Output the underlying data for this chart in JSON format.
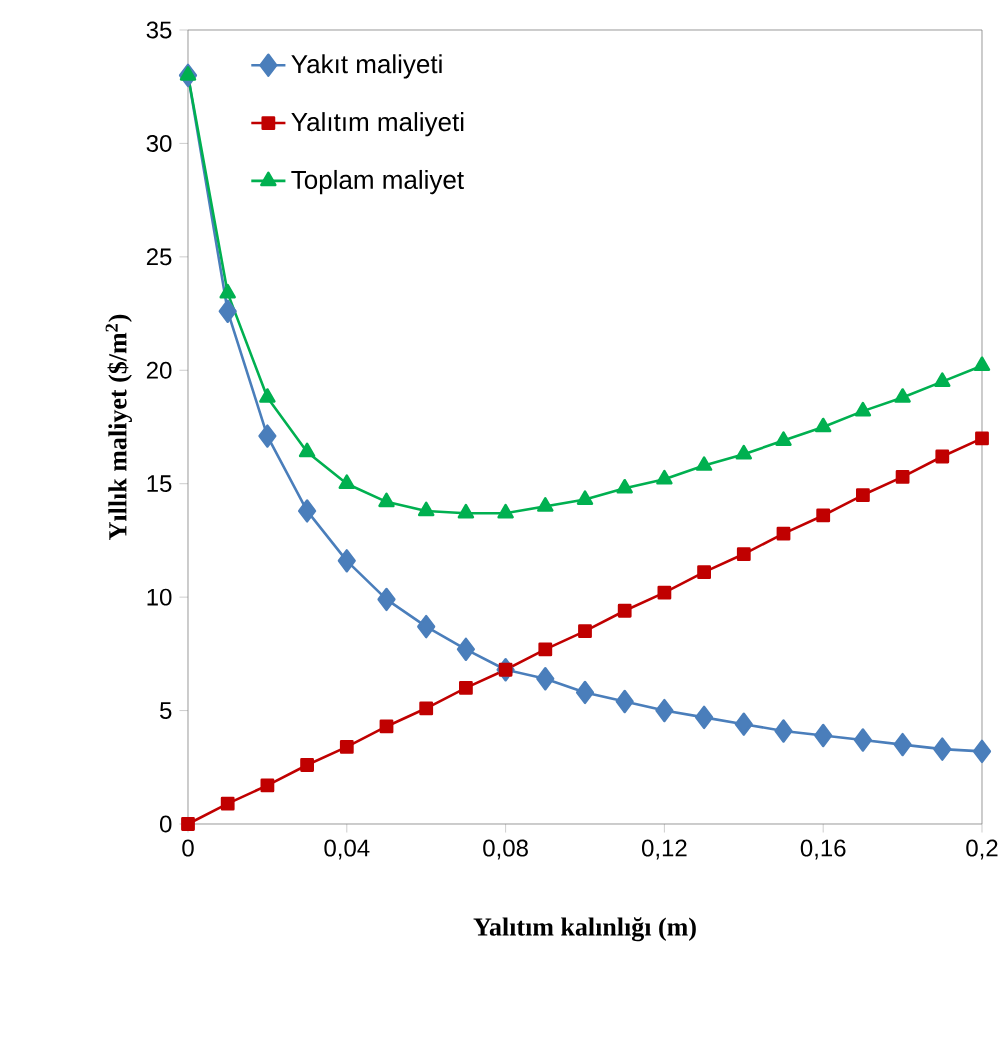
{
  "chart_data": {
    "type": "line",
    "xlabel": "Yalıtım kalınlığı (m)",
    "ylabel": "Yıllık maliyet ($/m$^{2}$)",
    "x": [
      0,
      0.01,
      0.02,
      0.03,
      0.04,
      0.05,
      0.06,
      0.07,
      0.08,
      0.09,
      0.1,
      0.11,
      0.12,
      0.13,
      0.14,
      0.15,
      0.16,
      0.17,
      0.18,
      0.19,
      0.2
    ],
    "series": [
      {
        "name": "Yakıt maliyeti",
        "color": "#4a7ebb",
        "marker": "diamond",
        "values": [
          33,
          22.6,
          17.1,
          13.8,
          11.6,
          9.9,
          8.7,
          7.7,
          6.8,
          6.4,
          5.8,
          5.4,
          5.0,
          4.7,
          4.4,
          4.1,
          3.9,
          3.7,
          3.5,
          3.3,
          3.2
        ]
      },
      {
        "name": "Yalıtım maliyeti",
        "color": "#c00000",
        "marker": "square",
        "values": [
          0,
          0.9,
          1.7,
          2.6,
          3.4,
          4.3,
          5.1,
          6.0,
          6.8,
          7.7,
          8.5,
          9.4,
          10.2,
          11.1,
          11.9,
          12.8,
          13.6,
          14.5,
          15.3,
          16.2,
          17
        ]
      },
      {
        "name": "Toplam maliyet",
        "color": "#00b050",
        "marker": "triangle",
        "values": [
          33,
          23.4,
          18.8,
          16.4,
          15.0,
          14.2,
          13.8,
          13.7,
          13.7,
          14.0,
          14.3,
          14.8,
          15.2,
          15.8,
          16.3,
          16.9,
          17.5,
          18.2,
          18.8,
          19.5,
          20.2
        ]
      }
    ],
    "xlim": [
      0,
      0.2
    ],
    "ylim": [
      0,
      35
    ],
    "xticks": [
      {
        "value": 0,
        "label": "0"
      },
      {
        "value": 0.04,
        "label": "0,04"
      },
      {
        "value": 0.08,
        "label": "0,08"
      },
      {
        "value": 0.12,
        "label": "0,12"
      },
      {
        "value": 0.16,
        "label": "0,16"
      },
      {
        "value": 0.2,
        "label": "0,2"
      }
    ],
    "yticks": [
      0,
      5,
      10,
      15,
      20,
      25,
      30,
      35
    ],
    "grid": false,
    "legend": "top left",
    "line_style": "solid"
  }
}
